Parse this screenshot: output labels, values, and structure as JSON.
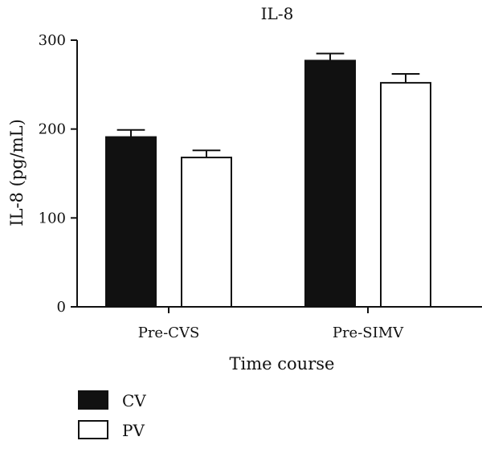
{
  "chart_data": {
    "type": "bar",
    "title": "IL-8",
    "xlabel": "Time course",
    "ylabel": "IL-8 (pg/mL)",
    "categories": [
      "Pre-CVS",
      "Pre-SIMV"
    ],
    "series": [
      {
        "name": "CV",
        "values": [
          191,
          277
        ],
        "errors": [
          8,
          8
        ],
        "color": "#111111"
      },
      {
        "name": "PV",
        "values": [
          168,
          252
        ],
        "errors": [
          8,
          10
        ],
        "color": "#ffffff"
      }
    ],
    "ylim": [
      0,
      300
    ],
    "yticks": [
      "0",
      "100",
      "200",
      "300"
    ],
    "grid": false,
    "legend_position": "bottom-left"
  }
}
